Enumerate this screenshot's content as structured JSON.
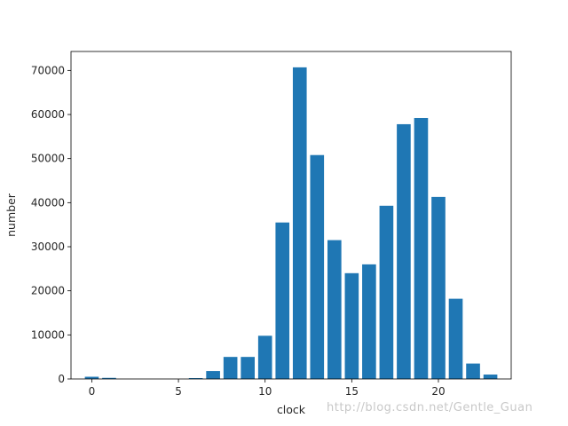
{
  "chart_data": {
    "type": "bar",
    "x": [
      0,
      1,
      2,
      3,
      4,
      5,
      6,
      7,
      8,
      9,
      10,
      11,
      12,
      13,
      14,
      15,
      16,
      17,
      18,
      19,
      20,
      21,
      22,
      23
    ],
    "values": [
      500,
      250,
      0,
      0,
      0,
      0,
      200,
      1800,
      5000,
      5000,
      9800,
      35500,
      70700,
      50800,
      31500,
      24000,
      26000,
      39300,
      57800,
      59200,
      41300,
      18200,
      3500,
      1000
    ],
    "xlabel": "clock",
    "ylabel": "number",
    "xlim": [
      -1.2,
      24.2
    ],
    "ylim": [
      0,
      74300
    ],
    "xticks": [
      0,
      5,
      10,
      15,
      20
    ],
    "yticks": [
      0,
      10000,
      20000,
      30000,
      40000,
      50000,
      60000,
      70000
    ],
    "bar_color": "#1f77b4",
    "grid": false
  },
  "watermark": "http://blog.csdn.net/Gentle_Guan"
}
